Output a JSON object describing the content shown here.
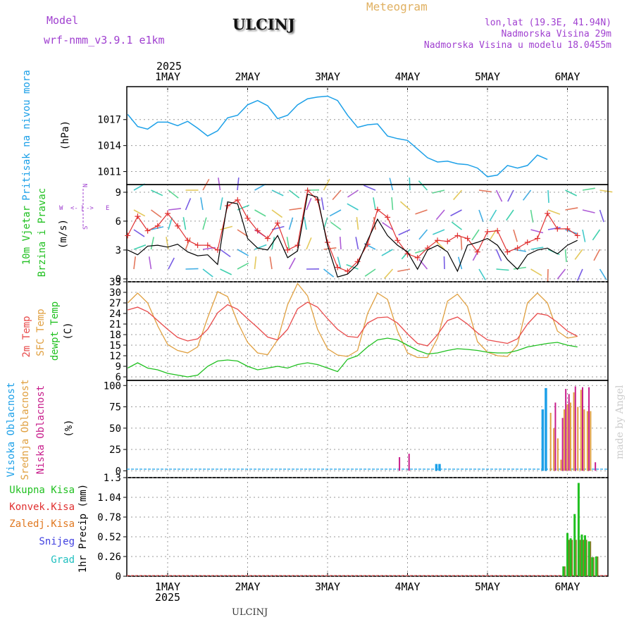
{
  "header": {
    "model_label": "Model",
    "model_name": "wrf-nmm_v3.9.1 e1km",
    "station": "ULCINJ",
    "product": "Meteogram",
    "lonlat": "lon,lat (19.3E, 41.94N)",
    "elevation": "Nadmorska Visina 29m",
    "model_elevation": "Nadmorska Visina u modelu 18.0455m",
    "footer_station": "ULCINJ",
    "watermark": "made by Angel"
  },
  "time_axis": {
    "year": "2025",
    "ticks": [
      "1MAY",
      "2MAY",
      "3MAY",
      "4MAY",
      "5MAY",
      "6MAY"
    ]
  },
  "colors": {
    "pressure": "#1ca0e8",
    "wind_speed": "#000000",
    "wind_gust": "#e03030",
    "t2m": "#e84a4a",
    "tsfc": "#e0a040",
    "dewpt": "#20c020",
    "cloud_high": "#1ca0e8",
    "cloud_mid": "#e0a040",
    "cloud_low": "#c81e8c",
    "precip_total": "#20c020",
    "precip_conv": "#e03030"
  },
  "panels": {
    "pressure": {
      "label1": "Pritisak na nivou mora",
      "unit": "(hPa)",
      "yticks": [
        "1017",
        "1014",
        "1011"
      ]
    },
    "wind": {
      "label1": "10m Vjetar",
      "label2": "Brzina i Pravac",
      "unit": "(m/s)",
      "yticks": [
        "9",
        "6",
        "3",
        "0"
      ],
      "compass_n": "N",
      "compass_s": "S",
      "compass_w": "W",
      "compass_e": "E"
    },
    "temp": {
      "label1": "2m Temp",
      "label2": "SFC Temp",
      "label3": "dewpt Temp",
      "unit": "(C)",
      "yticks": [
        "33",
        "30",
        "27",
        "24",
        "21",
        "18",
        "15",
        "12",
        "9",
        "6"
      ]
    },
    "cloud": {
      "label1": "Visoka Oblacnost",
      "label2": "Srednja Oblacnost",
      "label3": "Niska Oblacnost",
      "unit": "(%)",
      "yticks": [
        "100",
        "75",
        "50",
        "25",
        "0"
      ]
    },
    "precip": {
      "label1": "Ukupna Kisa",
      "label2": "Konvek.Kisa",
      "label3": "Zaledj.Kisa",
      "label4": "Snijeg",
      "label5": "Grad",
      "unit": "1hr Precip (mm)",
      "yticks": [
        "1.3",
        "1.04",
        "0.78",
        "0.52",
        "0.26",
        "0"
      ]
    }
  },
  "chart_data": [
    {
      "type": "line",
      "name": "pressure",
      "x_start": "2025-04-30 12:00",
      "x_step_hours": 3,
      "ylim": [
        1009.5,
        1020.8
      ],
      "series": [
        {
          "values": [
            1017.6,
            1016.2,
            1015.9,
            1016.7,
            1016.7,
            1016.3,
            1016.8,
            1016.0,
            1015.1,
            1015.7,
            1017.2,
            1017.5,
            1018.7,
            1019.2,
            1018.6,
            1017.1,
            1017.5,
            1018.7,
            1019.4,
            1019.6,
            1019.7,
            1019.2,
            1017.5,
            1016.1,
            1016.4,
            1016.5,
            1015.1,
            1014.8,
            1014.6,
            1013.6,
            1012.6,
            1012.1,
            1012.2,
            1011.9,
            1011.8,
            1011.4,
            1010.4,
            1010.6,
            1011.7,
            1011.4,
            1011.7,
            1012.9,
            1012.4
          ]
        }
      ],
      "grid": true
    },
    {
      "type": "line",
      "name": "wind",
      "x_start": "2025-04-30 12:00",
      "x_step_hours": 3,
      "ylim": [
        -0.3,
        9.8
      ],
      "series": [
        {
          "values": [
            3.0,
            2.5,
            3.4,
            3.5,
            3.3,
            3.6,
            2.8,
            2.4,
            2.5,
            1.5,
            8.0,
            7.8,
            4.2,
            3.2,
            3.0,
            4.5,
            2.2,
            2.9,
            8.8,
            8.5,
            3.5,
            0.2,
            0.5,
            1.5,
            4.0,
            6.2,
            4.5,
            3.5,
            2.8,
            1.0,
            3.0,
            3.5,
            2.8,
            0.8,
            3.5,
            3.8,
            4.2,
            3.5,
            2.0,
            1.0,
            2.5,
            3.0,
            3.2,
            2.6,
            3.5,
            4.0
          ]
        },
        {
          "values": [
            4.5,
            6.5,
            5.0,
            5.5,
            6.8,
            5.5,
            4.0,
            3.5,
            3.5,
            3.0,
            7.6,
            8.2,
            6.3,
            5.0,
            4.2,
            5.8,
            3.0,
            3.5,
            9.2,
            8.2,
            3.8,
            1.2,
            0.8,
            1.8,
            3.6,
            7.2,
            6.4,
            4.0,
            2.6,
            2.2,
            3.2,
            4.0,
            3.9,
            4.5,
            4.2,
            2.8,
            4.9,
            5.0,
            2.8,
            3.2,
            3.8,
            4.2,
            6.8,
            5.2,
            5.2,
            4.5
          ]
        }
      ],
      "grid": true
    },
    {
      "type": "line",
      "name": "temperature",
      "x_start": "2025-04-30 12:00",
      "x_step_hours": 3,
      "ylim": [
        5,
        33
      ],
      "series": [
        {
          "values": [
            25,
            25.8,
            24.5,
            22,
            19.5,
            17.2,
            16.2,
            16.8,
            19.5,
            24.2,
            26.5,
            25.2,
            22.5,
            20,
            17.3,
            16.5,
            19.5,
            25.3,
            27.2,
            25.8,
            22.5,
            19.5,
            17.5,
            17.2,
            21.3,
            22.8,
            23.0,
            21.3,
            18.2,
            15.5,
            14.8,
            18.0,
            22.0,
            23.0,
            21.0,
            18.5,
            16.5,
            16.0,
            15.5,
            16.8,
            21.0,
            24.0,
            23.5,
            21.5,
            19.0,
            17.5
          ]
        },
        {
          "values": [
            27,
            29.8,
            27,
            20.5,
            15.2,
            13.5,
            12.8,
            14.5,
            22.8,
            30.2,
            28.8,
            21.5,
            15.8,
            12.8,
            12.3,
            16.5,
            26.5,
            32.5,
            29.0,
            19.5,
            14.0,
            12.2,
            11.8,
            13.5,
            24.0,
            29.8,
            28.0,
            19.0,
            12.8,
            11.5,
            11.5,
            17.0,
            27.5,
            29.5,
            26.0,
            16.0,
            13.0,
            12.0,
            11.8,
            15.0,
            27.0,
            29.8,
            27.0,
            19.0,
            17.0,
            17.5
          ]
        },
        {
          "values": [
            8.5,
            10.0,
            8.5,
            8.0,
            7.0,
            6.5,
            6.0,
            6.5,
            9.0,
            10.5,
            10.8,
            10.5,
            9.0,
            8.0,
            8.5,
            9.0,
            8.5,
            9.5,
            10.0,
            9.5,
            8.5,
            7.5,
            11.0,
            12.0,
            14.5,
            16.5,
            17.0,
            16.5,
            15.0,
            13.5,
            12.5,
            12.8,
            13.5,
            14.0,
            13.8,
            13.5,
            13.0,
            12.8,
            12.8,
            13.5,
            14.5,
            15.0,
            15.5,
            15.8,
            15.0,
            14.5
          ]
        }
      ],
      "grid": true
    },
    {
      "type": "bar",
      "name": "cloud_cover",
      "categories": [
        "3MAY ~21h",
        "4MAY ~00h",
        "4MAY ~09h",
        "4MAY ~10h",
        "5MAY ~17h",
        "5MAY ~18h",
        "5MAY ~19h",
        "5MAY ~20h",
        "5MAY ~21h",
        "5MAY ~22h",
        "5MAY ~23h",
        "6MAY ~00h",
        "6MAY ~01h",
        "6MAY ~02h",
        "6MAY ~03h",
        "6MAY ~04h",
        "6MAY ~05h",
        "6MAY ~06h",
        "6MAY ~07h",
        "6MAY ~08h",
        "6MAY ~09h"
      ],
      "series": [
        {
          "name": "Visoka Oblacnost",
          "values": [
            0,
            0,
            8,
            8,
            72,
            97,
            0,
            0,
            0,
            0,
            0,
            0,
            0,
            0,
            0,
            0,
            0,
            0,
            0,
            0,
            0
          ]
        },
        {
          "name": "Srednja Oblacnost",
          "values": [
            0,
            0,
            0,
            0,
            0,
            0,
            68,
            50,
            38,
            13,
            72,
            78,
            80,
            92,
            75,
            95,
            72,
            70,
            70,
            0,
            0
          ]
        },
        {
          "name": "Niska Oblacnost",
          "values": [
            16,
            20,
            0,
            0,
            0,
            0,
            0,
            80,
            0,
            62,
            96,
            90,
            0,
            99,
            0,
            98,
            0,
            98,
            0,
            10,
            0
          ]
        }
      ],
      "ylim": [
        0,
        100
      ],
      "grid": true
    },
    {
      "type": "bar",
      "name": "precipitation",
      "categories": [
        "6MAY ~00h",
        "6MAY ~01h",
        "6MAY ~02h",
        "6MAY ~03h",
        "6MAY ~04h",
        "6MAY ~05h",
        "6MAY ~06h",
        "6MAY ~07h",
        "6MAY ~08h",
        "6MAY ~09h"
      ],
      "series": [
        {
          "name": "Ukupna Kisa",
          "values": [
            0.13,
            0.57,
            0.5,
            0.82,
            1.23,
            0.55,
            0.54,
            0.46,
            0.25,
            0.26
          ]
        },
        {
          "name": "Konvek.Kisa",
          "values": [
            0.02,
            0.05,
            0.02,
            0.04,
            0.03,
            0.02,
            0.02,
            0.02,
            0.01,
            0.01
          ]
        }
      ],
      "ylim": [
        0,
        1.3
      ],
      "grid": true
    }
  ]
}
